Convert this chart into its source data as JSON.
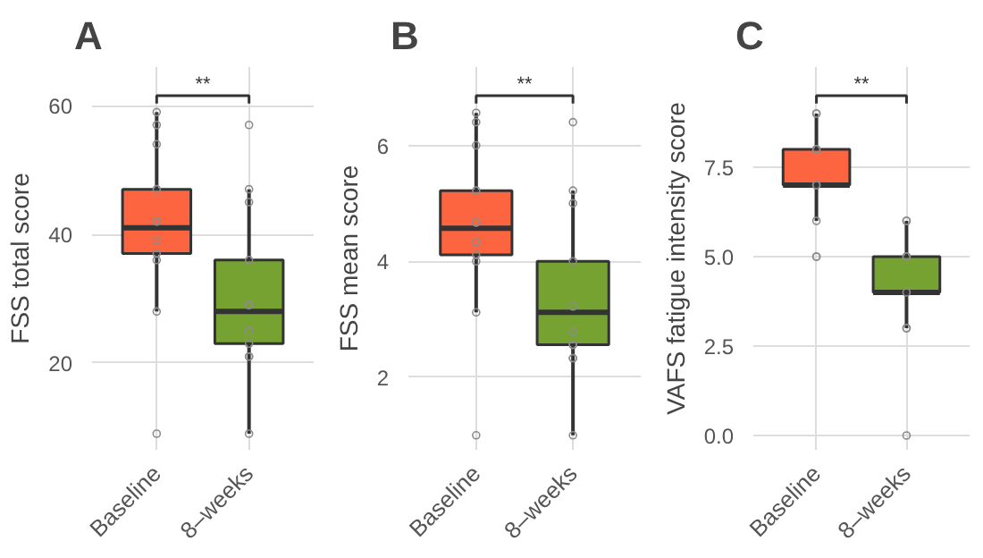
{
  "chart_data": [
    {
      "type": "box",
      "title": "A",
      "ylabel": "FSS total score",
      "categories": [
        "Baseline",
        "8–weeks"
      ],
      "colors": [
        "#fd6541",
        "#76a232"
      ],
      "boxes": [
        {
          "low": 28,
          "q1": 37,
          "median": 41,
          "q3": 47,
          "high": 59
        },
        {
          "low": 9,
          "q1": 23,
          "median": 28,
          "q3": 36,
          "high": 47
        }
      ],
      "series": [
        {
          "type": "scatter",
          "color": "#8c8c8c",
          "x": [
            "Baseline",
            "Baseline",
            "Baseline",
            "Baseline",
            "Baseline",
            "Baseline",
            "Baseline",
            "Baseline",
            "Baseline",
            "Baseline",
            "Baseline",
            "8–weeks",
            "8–weeks",
            "8–weeks",
            "8–weeks",
            "8–weeks",
            "8–weeks",
            "8–weeks",
            "8–weeks",
            "8–weeks",
            "8–weeks",
            "8–weeks"
          ],
          "values": [
            59,
            57,
            54,
            47,
            42,
            42,
            39,
            37,
            36,
            28,
            9,
            57,
            47,
            45,
            36,
            29,
            29,
            25,
            23,
            21,
            21,
            9
          ]
        }
      ],
      "ylim": [
        6.5,
        66
      ],
      "yticks": [
        20,
        40,
        60
      ],
      "grid": true,
      "marker": "circle",
      "annotations": [
        "**"
      ]
    },
    {
      "type": "box",
      "title": "B",
      "ylabel": "FSS mean score",
      "categories": [
        "Baseline",
        "8–weeks"
      ],
      "colors": [
        "#fd6541",
        "#76a232"
      ],
      "boxes": [
        {
          "low": 3.12,
          "q1": 4.11,
          "median": 4.57,
          "q3": 5.22,
          "high": 6.56
        },
        {
          "low": 1.0,
          "q1": 2.56,
          "median": 3.12,
          "q3": 4.0,
          "high": 5.22
        }
      ],
      "series": [
        {
          "type": "scatter",
          "color": "#8c8c8c",
          "x": [
            "Baseline",
            "Baseline",
            "Baseline",
            "Baseline",
            "Baseline",
            "Baseline",
            "Baseline",
            "Baseline",
            "Baseline",
            "Baseline",
            "Baseline",
            "8–weeks",
            "8–weeks",
            "8–weeks",
            "8–weeks",
            "8–weeks",
            "8–weeks",
            "8–weeks",
            "8–weeks",
            "8–weeks",
            "8–weeks",
            "8–weeks"
          ],
          "values": [
            6.56,
            6.4,
            6.0,
            5.22,
            4.67,
            4.67,
            4.33,
            4.11,
            4.0,
            3.12,
            1.0,
            6.4,
            5.22,
            5.0,
            4.0,
            3.22,
            2.78,
            2.56,
            2.56,
            2.33,
            2.33,
            1.0
          ]
        }
      ],
      "ylim": [
        0.75,
        7.35
      ],
      "yticks": [
        2,
        4,
        6
      ],
      "grid": true,
      "marker": "circle",
      "annotations": [
        "**"
      ]
    },
    {
      "type": "box",
      "title": "C",
      "ylabel": "VAFS fatigue intensity score",
      "categories": [
        "Baseline",
        "8–weeks"
      ],
      "colors": [
        "#fd6541",
        "#76a232"
      ],
      "boxes": [
        {
          "low": 6,
          "q1": 7,
          "median": 7,
          "q3": 8,
          "high": 9
        },
        {
          "low": 3,
          "q1": 4,
          "median": 4,
          "q3": 5,
          "high": 6
        }
      ],
      "series": [
        {
          "type": "scatter",
          "color": "#8c8c8c",
          "x": [
            "Baseline",
            "Baseline",
            "Baseline",
            "Baseline",
            "Baseline",
            "Baseline",
            "Baseline",
            "Baseline",
            "Baseline",
            "8–weeks",
            "8–weeks",
            "8–weeks",
            "8–weeks",
            "8–weeks",
            "8–weeks",
            "8–weeks",
            "8–weeks"
          ],
          "values": [
            9,
            9,
            8,
            8,
            7,
            7,
            6,
            5,
            5,
            6,
            6,
            5,
            5,
            4,
            3,
            3,
            0
          ]
        }
      ],
      "ylim": [
        -0.4,
        10.3
      ],
      "yticks": [
        {
          "value": 0,
          "label": "0.0"
        },
        {
          "value": 2.5,
          "label": "2.5"
        },
        {
          "value": 5,
          "label": "5.0"
        },
        {
          "value": 7.5,
          "label": "7.5"
        }
      ],
      "grid": true,
      "marker": "circle",
      "annotations": [
        "**"
      ]
    }
  ]
}
